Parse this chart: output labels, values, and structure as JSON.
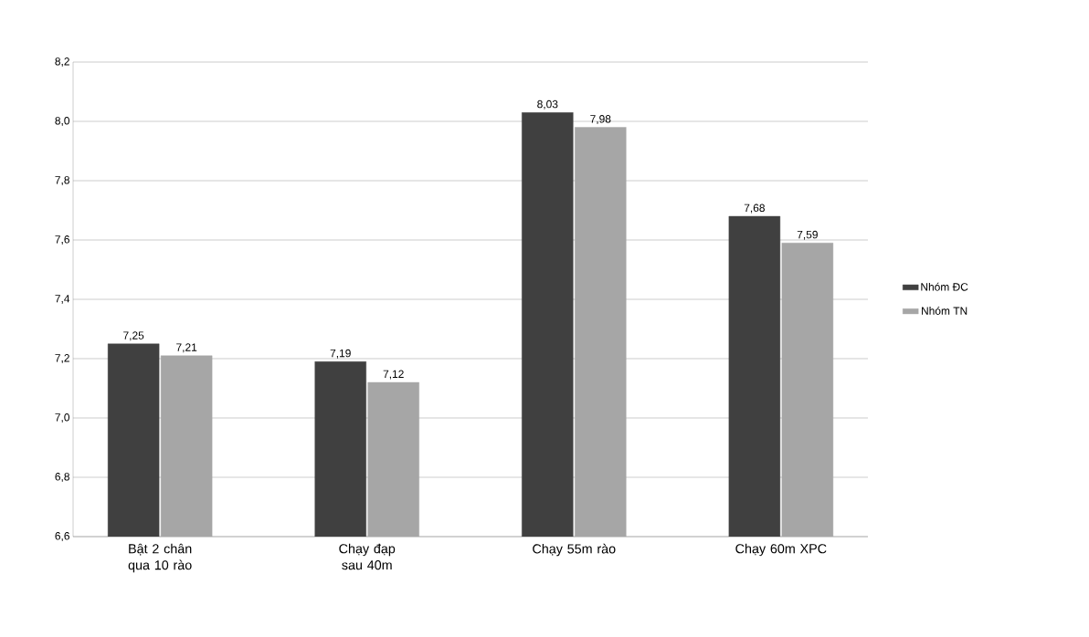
{
  "chart_data": {
    "type": "bar",
    "categories": [
      "Bật 2 chân qua 10 rào",
      "Chạy đạp sau 40m",
      "Chạy 55m rào",
      "Chạy 60m XPC"
    ],
    "series": [
      {
        "name": "Nhóm ĐC",
        "color": "#404040",
        "values": [
          7.25,
          7.19,
          8.03,
          7.68
        ],
        "value_labels": [
          "7,25",
          "7,19",
          "8,03",
          "7,68"
        ]
      },
      {
        "name": "Nhóm TN",
        "color": "#a6a6a6",
        "values": [
          7.21,
          7.12,
          7.98,
          7.59
        ],
        "value_labels": [
          "7,21",
          "7,12",
          "7,98",
          "7,59"
        ]
      }
    ],
    "ylim": [
      6.6,
      8.2
    ],
    "yticks": [
      {
        "value": 6.6,
        "label": "6,6"
      },
      {
        "value": 6.8,
        "label": "6,8"
      },
      {
        "value": 7.0,
        "label": "7,0"
      },
      {
        "value": 7.2,
        "label": "7,2"
      },
      {
        "value": 7.4,
        "label": "7,4"
      },
      {
        "value": 7.6,
        "label": "7,6"
      },
      {
        "value": 7.8,
        "label": "7,8"
      },
      {
        "value": 8.0,
        "label": "8,0"
      },
      {
        "value": 8.2,
        "label": "8,2"
      }
    ],
    "grid": "y",
    "legend": "right"
  }
}
